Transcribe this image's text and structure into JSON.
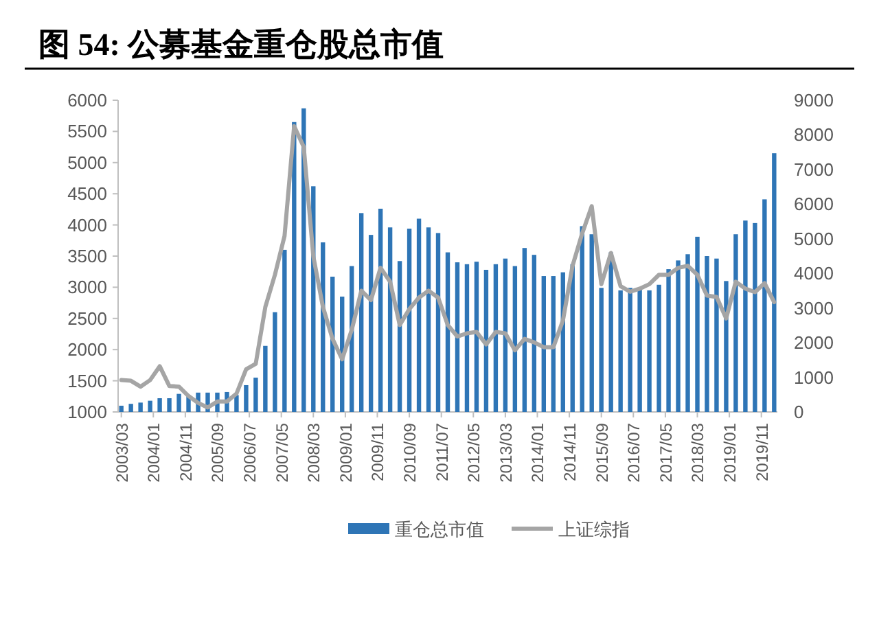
{
  "chart_data": {
    "type": "bar",
    "title": "图 54: 公募基金重仓股总市值",
    "x": [
      "2003-03",
      "2003-06",
      "2003-09",
      "2003-12",
      "2004-03",
      "2004-06",
      "2004-09",
      "2004-12",
      "2005-03",
      "2005-06",
      "2005-09",
      "2005-12",
      "2006-03",
      "2006-06",
      "2006-09",
      "2006-12",
      "2007-03",
      "2007-06",
      "2007-09",
      "2007-12",
      "2008-03",
      "2008-06",
      "2008-09",
      "2008-12",
      "2009-03",
      "2009-06",
      "2009-09",
      "2009-12",
      "2010-03",
      "2010-06",
      "2010-09",
      "2010-12",
      "2011-03",
      "2011-06",
      "2011-09",
      "2011-12",
      "2012-03",
      "2012-06",
      "2012-09",
      "2012-12",
      "2013-03",
      "2013-06",
      "2013-09",
      "2013-12",
      "2014-03",
      "2014-06",
      "2014-09",
      "2014-12",
      "2015-03",
      "2015-06",
      "2015-09",
      "2015-12",
      "2016-03",
      "2016-06",
      "2016-09",
      "2016-12",
      "2017-03",
      "2017-06",
      "2017-09",
      "2017-12",
      "2018-03",
      "2018-06",
      "2018-09",
      "2018-12",
      "2019-03",
      "2019-06",
      "2019-09",
      "2019-12",
      "2020-03"
    ],
    "series": [
      {
        "name": "重仓总市值",
        "color": "#2e75b6",
        "values": [
          1100,
          1130,
          1150,
          1180,
          1220,
          1220,
          1290,
          1260,
          1310,
          1310,
          1310,
          1320,
          1270,
          1430,
          1550,
          2060,
          2600,
          3600,
          5650,
          5870,
          4620,
          3720,
          3170,
          2850,
          3340,
          4190,
          3840,
          4260,
          3960,
          3420,
          3940,
          4100,
          3960,
          3870,
          3560,
          3400,
          3370,
          3410,
          3280,
          3370,
          3460,
          3340,
          3630,
          3520,
          3180,
          3180,
          3240,
          3370,
          3980,
          3850,
          2990,
          3560,
          2950,
          2990,
          2990,
          2950,
          3040,
          3290,
          3430,
          3530,
          3810,
          3500,
          3460,
          3100,
          3850,
          4070,
          4030,
          4410,
          5150
        ]
      },
      {
        "name": "上证综指",
        "type": "line",
        "axis": "y2",
        "color": "#a5a5a5",
        "values": [
          920,
          900,
          730,
          920,
          1320,
          750,
          730,
          460,
          260,
          130,
          300,
          300,
          530,
          1230,
          1390,
          3030,
          3960,
          5080,
          8250,
          7650,
          4490,
          3030,
          2110,
          1520,
          2370,
          3500,
          3230,
          4160,
          3760,
          2510,
          2970,
          3300,
          3500,
          3300,
          2510,
          2180,
          2270,
          2310,
          1950,
          2310,
          2270,
          1780,
          2110,
          2010,
          1870,
          1870,
          2640,
          4220,
          5150,
          5940,
          3690,
          4590,
          3630,
          3470,
          3560,
          3690,
          3960,
          3960,
          4160,
          4220,
          3960,
          3360,
          3320,
          2700,
          3760,
          3560,
          3460,
          3720,
          3170
        ]
      }
    ],
    "xlim": [
      "2003-02",
      "2020-04"
    ],
    "xticks": [
      {
        "value": "2003-03",
        "label": "2003/03"
      },
      {
        "value": "2004-01",
        "label": "2004/01"
      },
      {
        "value": "2004-11",
        "label": "2004/11"
      },
      {
        "value": "2005-09",
        "label": "2005/09"
      },
      {
        "value": "2006-07",
        "label": "2006/07"
      },
      {
        "value": "2007-05",
        "label": "2007/05"
      },
      {
        "value": "2008-03",
        "label": "2008/03"
      },
      {
        "value": "2009-01",
        "label": "2009/01"
      },
      {
        "value": "2009-11",
        "label": "2009/11"
      },
      {
        "value": "2010-09",
        "label": "2010/09"
      },
      {
        "value": "2011-07",
        "label": "2011/07"
      },
      {
        "value": "2012-05",
        "label": "2012/05"
      },
      {
        "value": "2013-03",
        "label": "2013/03"
      },
      {
        "value": "2014-01",
        "label": "2014/01"
      },
      {
        "value": "2014-11",
        "label": "2014/11"
      },
      {
        "value": "2015-09",
        "label": "2015/09"
      },
      {
        "value": "2016-07",
        "label": "2016/07"
      },
      {
        "value": "2017-05",
        "label": "2017/05"
      },
      {
        "value": "2018-03",
        "label": "2018/03"
      },
      {
        "value": "2019-01",
        "label": "2019/01"
      },
      {
        "value": "2019-11",
        "label": "2019/11"
      }
    ],
    "ylim": [
      1000,
      6000
    ],
    "yticks": [
      1000,
      1500,
      2000,
      2500,
      3000,
      3500,
      4000,
      4500,
      5000,
      5500,
      6000
    ],
    "y2lim": [
      0,
      9000
    ],
    "y2ticks": [
      0,
      1000,
      2000,
      3000,
      4000,
      5000,
      6000,
      7000,
      8000,
      9000
    ],
    "legend": "bottom"
  }
}
